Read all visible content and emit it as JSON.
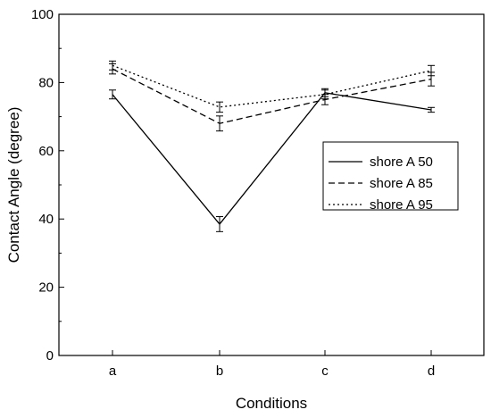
{
  "chart_data": {
    "type": "line",
    "categories": [
      "a",
      "b",
      "c",
      "d"
    ],
    "xlabel": "Conditions",
    "ylabel": "Contact Angle (degree)",
    "ylim": [
      0,
      100
    ],
    "yticks": [
      0,
      20,
      40,
      60,
      80,
      100
    ],
    "legend_position": "right",
    "grid": false,
    "series": [
      {
        "name": "shore A 50",
        "line_style": "solid",
        "values": [
          76.5,
          38.5,
          77.0,
          72.0
        ],
        "errors": [
          1.3,
          2.2,
          1.2,
          0.7
        ]
      },
      {
        "name": "shore A 85",
        "line_style": "dashed",
        "values": [
          84.0,
          68.0,
          75.0,
          81.0
        ],
        "errors": [
          1.5,
          2.2,
          1.5,
          2.0
        ]
      },
      {
        "name": "shore A 95",
        "line_style": "dotted",
        "values": [
          85.0,
          72.8,
          76.5,
          83.5
        ],
        "errors": [
          1.3,
          1.5,
          1.3,
          1.5
        ]
      }
    ]
  }
}
